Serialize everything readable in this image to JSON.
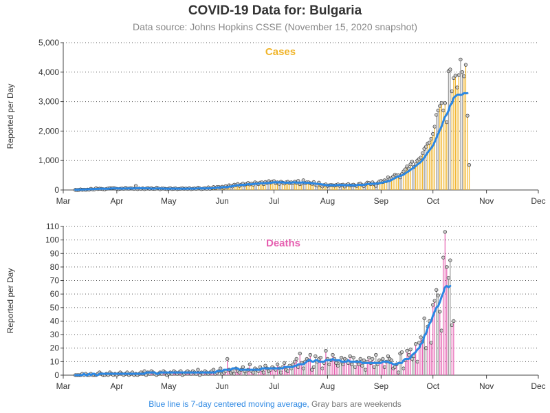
{
  "page": {
    "title": "COVID-19 Data for: Bulgaria",
    "subtitle": "Data source: Johns Hopkins CSSE (November 15, 2020 snapshot)",
    "footnote_blue": "Blue line is 7-day centered moving average,",
    "footnote_gray": " Gray bars are weekends"
  },
  "colors": {
    "cases": "#f0b429",
    "deaths": "#e65fb0",
    "moving_average": "#2b87e3",
    "marker_fill": "#c8c8c8",
    "grid": "#555555"
  },
  "chart_data": [
    {
      "type": "bar",
      "panel_label": "Cases",
      "ylabel": "Reported per Day",
      "ylim": [
        0,
        5000
      ],
      "y_ticks": [
        0,
        1000,
        2000,
        3000,
        4000,
        5000
      ],
      "y_tick_labels": [
        "0",
        "1,000",
        "2,000",
        "3,000",
        "4,000",
        "5,000"
      ],
      "x_range": [
        "2020-03-01",
        "2020-12-01"
      ],
      "x_ticks": [
        "2020-03-01",
        "2020-04-01",
        "2020-05-01",
        "2020-06-01",
        "2020-07-01",
        "2020-08-01",
        "2020-09-01",
        "2020-10-01",
        "2020-11-01",
        "2020-12-01"
      ],
      "x_tick_labels": [
        "Mar",
        "Apr",
        "May",
        "Jun",
        "Jul",
        "Aug",
        "Sep",
        "Oct",
        "Nov",
        "Dec"
      ],
      "grid": "horizontal dotted",
      "start_date": "2020-03-08",
      "series": [
        {
          "name": "Cases",
          "values": [
            4,
            0,
            2,
            20,
            7,
            12,
            5,
            14,
            10,
            40,
            17,
            18,
            60,
            33,
            45,
            39,
            28,
            20,
            38,
            50,
            60,
            55,
            68,
            52,
            40,
            28,
            42,
            50,
            38,
            72,
            47,
            45,
            60,
            50,
            35,
            140,
            30,
            49,
            35,
            58,
            28,
            46,
            70,
            40,
            60,
            38,
            35,
            80,
            55,
            25,
            48,
            50,
            40,
            30,
            45,
            60,
            32,
            42,
            55,
            28,
            38,
            45,
            58,
            40,
            50,
            36,
            63,
            30,
            43,
            52,
            38,
            80,
            55,
            30,
            45,
            60,
            38,
            90,
            40,
            68,
            98,
            60,
            100,
            103,
            84,
            110,
            75,
            130,
            92,
            160,
            140,
            120,
            180,
            160,
            204,
            140,
            180,
            220,
            160,
            200,
            240,
            190,
            220,
            180,
            260,
            230,
            200,
            250,
            260,
            200,
            270,
            240,
            300,
            250,
            280,
            300,
            230,
            260,
            210,
            280,
            250,
            220,
            260,
            280,
            230,
            260,
            230,
            280,
            240,
            310,
            200,
            220,
            330,
            230,
            260,
            260,
            230,
            210,
            270,
            180,
            150,
            250,
            160,
            120,
            170,
            190,
            140,
            160,
            170,
            160,
            150,
            170,
            190,
            140,
            170,
            180,
            120,
            170,
            200,
            150,
            160,
            180,
            150,
            140,
            200,
            220,
            170,
            130,
            190,
            250,
            240,
            200,
            260,
            200,
            140,
            230,
            290,
            310,
            270,
            330,
            300,
            430,
            370,
            400,
            460,
            520,
            490,
            500,
            430,
            540,
            630,
            700,
            800,
            720,
            870,
            960,
            780,
            880,
            1000,
            1050,
            1100,
            1250,
            1400,
            1470,
            1580,
            1610,
            1740,
            1900,
            2150,
            2550,
            2700,
            2850,
            2950,
            2700,
            2950,
            2300,
            4030,
            4090,
            3350,
            3800,
            3880,
            3480,
            3900,
            4430,
            4000,
            3860,
            4250,
            2520,
            850
          ]
        },
        {
          "name": "7-day moving average",
          "values": [
            9,
            10,
            14,
            15,
            17,
            19,
            20,
            23,
            27,
            28,
            29,
            31,
            34,
            37,
            42,
            44,
            44,
            42,
            40,
            42,
            46,
            51,
            53,
            54,
            53,
            51,
            49,
            47,
            47,
            50,
            51,
            52,
            52,
            53,
            51,
            57,
            58,
            59,
            59,
            56,
            55,
            55,
            55,
            53,
            48,
            46,
            46,
            51,
            52,
            51,
            51,
            48,
            46,
            44,
            42,
            48,
            47,
            45,
            46,
            45,
            43,
            43,
            43,
            44,
            45,
            46,
            47,
            47,
            45,
            47,
            49,
            53,
            54,
            55,
            53,
            54,
            55,
            58,
            56,
            55,
            61,
            70,
            75,
            82,
            85,
            94,
            98,
            97,
            98,
            113,
            119,
            128,
            141,
            150,
            160,
            163,
            172,
            177,
            176,
            184,
            196,
            193,
            195,
            201,
            210,
            213,
            217,
            223,
            230,
            227,
            232,
            238,
            242,
            245,
            251,
            263,
            260,
            259,
            258,
            261,
            259,
            250,
            245,
            250,
            249,
            251,
            256,
            261,
            252,
            250,
            249,
            253,
            256,
            246,
            243,
            247,
            234,
            230,
            222,
            218,
            206,
            203,
            196,
            189,
            175,
            167,
            158,
            160,
            163,
            159,
            157,
            160,
            170,
            170,
            171,
            166,
            163,
            162,
            164,
            166,
            162,
            157,
            153,
            167,
            176,
            171,
            171,
            178,
            187,
            198,
            206,
            211,
            209,
            210,
            215,
            218,
            228,
            243,
            253,
            267,
            281,
            300,
            304,
            340,
            372,
            401,
            436,
            462,
            474,
            496,
            520,
            561,
            607,
            637,
            686,
            723,
            772,
            810,
            863,
            908,
            953,
            1026,
            1100,
            1186,
            1275,
            1353,
            1423,
            1507,
            1629,
            1767,
            1903,
            2037,
            2159,
            2330,
            2485,
            2565,
            2690,
            2878,
            2941,
            3125,
            3181,
            3231,
            3240,
            3226,
            3241,
            3289,
            3280,
            3287
          ]
        }
      ]
    },
    {
      "type": "bar",
      "panel_label": "Deaths",
      "ylabel": "Reported per Day",
      "ylim": [
        0,
        110
      ],
      "y_ticks": [
        0,
        10,
        20,
        30,
        40,
        50,
        60,
        70,
        80,
        90,
        100,
        110
      ],
      "y_tick_labels": [
        "0",
        "10",
        "20",
        "30",
        "40",
        "50",
        "60",
        "70",
        "80",
        "90",
        "100",
        "110"
      ],
      "x_range": [
        "2020-03-01",
        "2020-12-01"
      ],
      "x_ticks": [
        "2020-03-01",
        "2020-04-01",
        "2020-05-01",
        "2020-06-01",
        "2020-07-01",
        "2020-08-01",
        "2020-09-01",
        "2020-10-01",
        "2020-11-01",
        "2020-12-01"
      ],
      "x_tick_labels": [
        "Mar",
        "Apr",
        "May",
        "Jun",
        "Jul",
        "Aug",
        "Sep",
        "Oct",
        "Nov",
        "Dec"
      ],
      "grid": "horizontal dotted",
      "start_date": "2020-03-08",
      "series": [
        {
          "name": "Deaths",
          "values": [
            0,
            0,
            0,
            0,
            1,
            0,
            1,
            0,
            0,
            1,
            0,
            0,
            0,
            1,
            2,
            1,
            0,
            0,
            1,
            0,
            2,
            1,
            0,
            1,
            0,
            1,
            2,
            1,
            0,
            1,
            2,
            0,
            1,
            2,
            0,
            1,
            0,
            1,
            2,
            1,
            3,
            0,
            2,
            1,
            3,
            2,
            1,
            0,
            1,
            2,
            1,
            3,
            2,
            0,
            1,
            2,
            1,
            3,
            2,
            1,
            2,
            3,
            0,
            1,
            2,
            3,
            2,
            1,
            3,
            2,
            1,
            4,
            0,
            2,
            1,
            3,
            2,
            1,
            2,
            3,
            4,
            1,
            2,
            3,
            5,
            1,
            2,
            3,
            12,
            4,
            2,
            3,
            1,
            5,
            3,
            2,
            4,
            6,
            3,
            1,
            4,
            8,
            3,
            2,
            5,
            4,
            3,
            6,
            4,
            2,
            7,
            5,
            3,
            4,
            6,
            5,
            4,
            8,
            5,
            2,
            6,
            9,
            4,
            3,
            7,
            5,
            8,
            10,
            12,
            6,
            16,
            9,
            5,
            10,
            12,
            11,
            15,
            4,
            6,
            14,
            10,
            12,
            13,
            5,
            9,
            18,
            12,
            8,
            11,
            15,
            12,
            9,
            7,
            10,
            13,
            8,
            12,
            11,
            9,
            14,
            8,
            13,
            6,
            10,
            8,
            12,
            7,
            11,
            4,
            10,
            13,
            9,
            12,
            6,
            15,
            8,
            11,
            10,
            12,
            6,
            10,
            14,
            12,
            11,
            5,
            6,
            8,
            2,
            16,
            17,
            5,
            11,
            18,
            15,
            19,
            12,
            14,
            23,
            10,
            24,
            28,
            25,
            42,
            20,
            36,
            40,
            24,
            52,
            55,
            63,
            59,
            47,
            33,
            87,
            106,
            80,
            72,
            85,
            37,
            40
          ]
        },
        {
          "name": "7-day moving average",
          "values": [
            0,
            0,
            0,
            0,
            0,
            1,
            0,
            0,
            1,
            0,
            1,
            1,
            0,
            0,
            1,
            1,
            1,
            1,
            1,
            1,
            1,
            1,
            1,
            1,
            1,
            1,
            1,
            1,
            1,
            1,
            1,
            1,
            1,
            1,
            1,
            1,
            1,
            1,
            1,
            1,
            1,
            2,
            2,
            2,
            2,
            2,
            2,
            1,
            1,
            2,
            2,
            2,
            2,
            2,
            2,
            2,
            2,
            2,
            2,
            2,
            2,
            2,
            2,
            2,
            2,
            2,
            2,
            2,
            2,
            2,
            2,
            2,
            2,
            2,
            2,
            2,
            2,
            2,
            2,
            2,
            2,
            2,
            3,
            3,
            3,
            3,
            4,
            4,
            4,
            4,
            4,
            5,
            5,
            5,
            5,
            4,
            4,
            4,
            4,
            4,
            4,
            4,
            4,
            4,
            4,
            4,
            4,
            4,
            5,
            5,
            5,
            5,
            5,
            5,
            5,
            5,
            5,
            5,
            5,
            5,
            5,
            6,
            6,
            6,
            6,
            6,
            6,
            7,
            7,
            8,
            8,
            8,
            8,
            9,
            10,
            11,
            11,
            10,
            10,
            11,
            11,
            10,
            10,
            10,
            10,
            11,
            11,
            11,
            11,
            12,
            11,
            11,
            11,
            11,
            10,
            10,
            10,
            10,
            11,
            10,
            10,
            10,
            10,
            10,
            10,
            10,
            9,
            9,
            9,
            9,
            9,
            9,
            9,
            9,
            9,
            9,
            9,
            9,
            10,
            10,
            10,
            10,
            9,
            9,
            8,
            8,
            8,
            9,
            9,
            9,
            11,
            12,
            12,
            12,
            13,
            15,
            16,
            17,
            19,
            20,
            23,
            24,
            29,
            31,
            35,
            38,
            40,
            44,
            47,
            50,
            51,
            54,
            58,
            61,
            65,
            66,
            65,
            66
          ]
        }
      ]
    }
  ]
}
